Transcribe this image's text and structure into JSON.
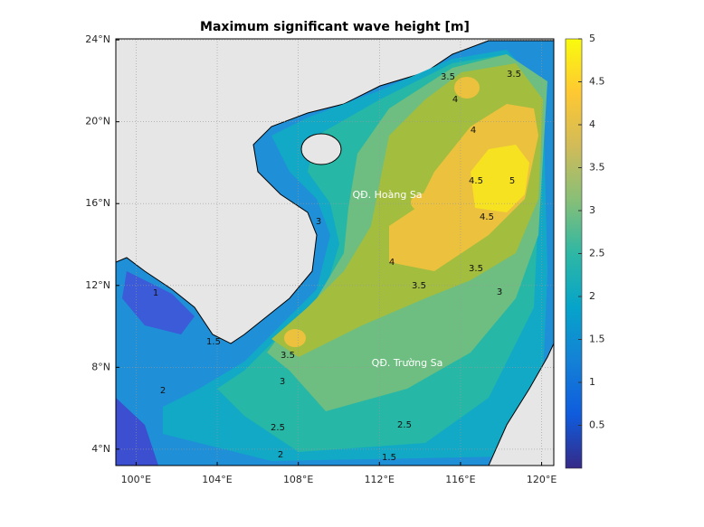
{
  "title": "Maximum significant wave height [m]",
  "map": {
    "xlim": [
      99,
      120.6
    ],
    "ylim": [
      3.2,
      24.05
    ],
    "grid": true,
    "xticks": [
      {
        "value": 100,
        "label": "100°E"
      },
      {
        "value": 104,
        "label": "104°E"
      },
      {
        "value": 108,
        "label": "108°E"
      },
      {
        "value": 112,
        "label": "112°E"
      },
      {
        "value": 116,
        "label": "116°E"
      },
      {
        "value": 120,
        "label": "120°E"
      }
    ],
    "yticks": [
      {
        "value": 4,
        "label": "4°N"
      },
      {
        "value": 8,
        "label": "8°N"
      },
      {
        "value": 12,
        "label": "12°N"
      },
      {
        "value": 16,
        "label": "16°N"
      },
      {
        "value": 20,
        "label": "20°N"
      },
      {
        "value": 24,
        "label": "24°N"
      }
    ]
  },
  "colorbar": {
    "lim": [
      0,
      5
    ],
    "ticks": [
      0.5,
      1,
      1.5,
      2,
      2.5,
      3,
      3.5,
      4,
      4.5,
      5
    ]
  },
  "place_labels": [
    "QĐ. Hoàng Sa",
    "QĐ. Trường Sa"
  ],
  "contour_labels": [
    3.5,
    3.5,
    4,
    4,
    4.5,
    5,
    4.5,
    4,
    3.5,
    3.5,
    3,
    3,
    3.5,
    3,
    2.5,
    2.5,
    2,
    1.5,
    1,
    2,
    1.5
  ]
}
